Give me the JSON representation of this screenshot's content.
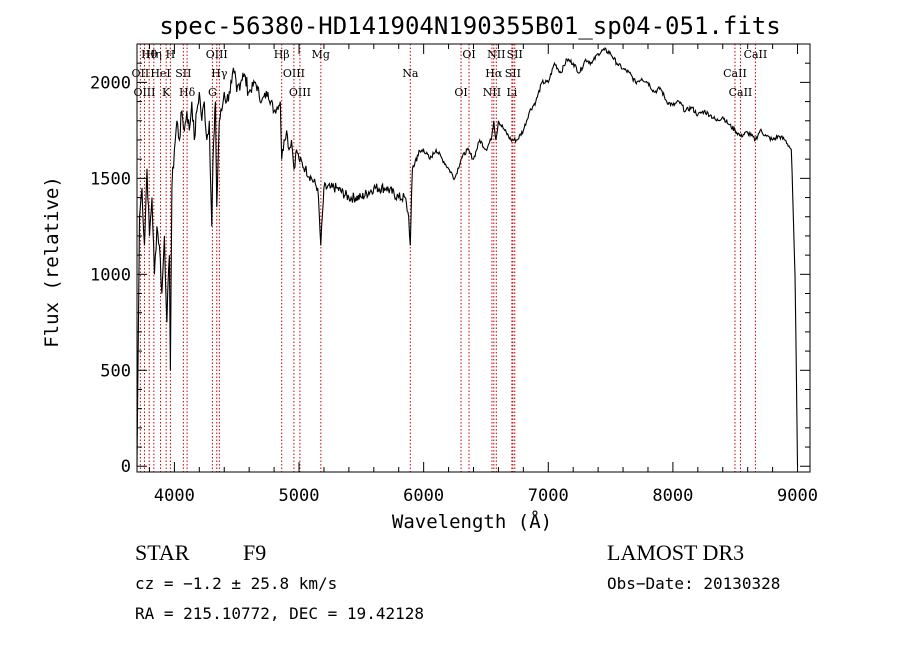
{
  "chart_data": {
    "type": "line",
    "title": "spec-56380-HD141904N190355B01_sp04-051.fits",
    "xlabel": "Wavelength (Å)",
    "ylabel": "Flux (relative)",
    "xlim": [
      3700,
      9100
    ],
    "ylim": [
      -30,
      2200
    ],
    "x_ticks": [
      4000,
      5000,
      6000,
      7000,
      8000,
      9000
    ],
    "y_ticks": [
      0,
      500,
      1000,
      1500,
      2000
    ],
    "x_tick_labels": [
      "4000",
      "5000",
      "6000",
      "7000",
      "8000",
      "9000"
    ],
    "y_tick_labels": [
      "0",
      "500",
      "1000",
      "1500",
      "2000"
    ],
    "grid": false,
    "series": [
      {
        "name": "spectrum",
        "color": "#000000",
        "x": [
          3700,
          3720,
          3740,
          3760,
          3780,
          3800,
          3820,
          3840,
          3860,
          3880,
          3900,
          3920,
          3940,
          3960,
          3968,
          3980,
          4000,
          4020,
          4040,
          4060,
          4080,
          4100,
          4120,
          4140,
          4160,
          4180,
          4200,
          4220,
          4240,
          4260,
          4280,
          4300,
          4310,
          4320,
          4330,
          4340,
          4360,
          4380,
          4400,
          4420,
          4440,
          4460,
          4480,
          4500,
          4550,
          4600,
          4650,
          4700,
          4750,
          4800,
          4850,
          4861,
          4880,
          4900,
          4920,
          4940,
          4960,
          4980,
          5000,
          5050,
          5100,
          5150,
          5175,
          5200,
          5250,
          5300,
          5400,
          5500,
          5600,
          5700,
          5800,
          5850,
          5880,
          5893,
          5910,
          5950,
          6000,
          6050,
          6100,
          6150,
          6200,
          6250,
          6300,
          6350,
          6400,
          6450,
          6500,
          6540,
          6563,
          6580,
          6600,
          6650,
          6700,
          6750,
          6800,
          6850,
          6900,
          6950,
          7000,
          7050,
          7100,
          7150,
          7200,
          7250,
          7300,
          7350,
          7400,
          7450,
          7500,
          7550,
          7600,
          7650,
          7700,
          7750,
          7800,
          7850,
          7900,
          7950,
          8000,
          8050,
          8100,
          8150,
          8200,
          8250,
          8300,
          8350,
          8400,
          8450,
          8500,
          8542,
          8600,
          8662,
          8700,
          8750,
          8800,
          8850,
          8900,
          8950,
          8980,
          9000
        ],
        "y": [
          0,
          1300,
          1450,
          1150,
          1550,
          1200,
          1400,
          1000,
          1250,
          1150,
          900,
          1200,
          750,
          1100,
          500,
          1450,
          1650,
          1800,
          1700,
          1850,
          1750,
          1850,
          1750,
          1900,
          1700,
          1850,
          1950,
          1800,
          1900,
          1700,
          1800,
          1250,
          1600,
          1750,
          1900,
          1350,
          1800,
          1850,
          1950,
          1900,
          1950,
          2000,
          2050,
          1950,
          2050,
          1950,
          2000,
          1900,
          1950,
          1850,
          1900,
          1600,
          1700,
          1750,
          1650,
          1700,
          1550,
          1650,
          1600,
          1550,
          1500,
          1450,
          1150,
          1450,
          1450,
          1450,
          1400,
          1400,
          1450,
          1450,
          1400,
          1400,
          1300,
          1150,
          1550,
          1620,
          1650,
          1600,
          1650,
          1600,
          1550,
          1500,
          1600,
          1650,
          1600,
          1700,
          1650,
          1700,
          1800,
          1700,
          1800,
          1750,
          1700,
          1700,
          1750,
          1850,
          1900,
          2000,
          2000,
          2100,
          2050,
          2120,
          2100,
          2050,
          2120,
          2100,
          2150,
          2170,
          2150,
          2100,
          2070,
          2050,
          2000,
          2020,
          2000,
          1950,
          1970,
          1900,
          1880,
          1900,
          1850,
          1870,
          1830,
          1850,
          1830,
          1800,
          1820,
          1780,
          1750,
          1720,
          1740,
          1700,
          1750,
          1720,
          1700,
          1720,
          1700,
          1650,
          1000,
          0
        ]
      }
    ],
    "line_markers": [
      {
        "label": "Hθ",
        "x": 3798
      },
      {
        "label": "OII",
        "x": 3727
      },
      {
        "label": "OIII",
        "x": 3760
      },
      {
        "label": "Hη",
        "x": 3835
      },
      {
        "label": "HeI",
        "x": 3889
      },
      {
        "label": "K",
        "x": 3934
      },
      {
        "label": "H",
        "x": 3968
      },
      {
        "label": "SII",
        "x": 4072
      },
      {
        "label": "Hδ",
        "x": 4102
      },
      {
        "label": "OIII",
        "x": 4340
      },
      {
        "label": "Hγ",
        "x": 4361
      },
      {
        "label": "G",
        "x": 4305
      },
      {
        "label": "Hβ",
        "x": 4861
      },
      {
        "label": "OIII",
        "x": 4959
      },
      {
        "label": "OIII",
        "x": 5007
      },
      {
        "label": "Mg",
        "x": 5175
      },
      {
        "label": "Na",
        "x": 5893
      },
      {
        "label": "OI",
        "x": 6300
      },
      {
        "label": "OI",
        "x": 6364
      },
      {
        "label": "Hα",
        "x": 6563
      },
      {
        "label": "NII",
        "x": 6548
      },
      {
        "label": "NII",
        "x": 6583
      },
      {
        "label": "SII",
        "x": 6716
      },
      {
        "label": "Li",
        "x": 6708
      },
      {
        "label": "SII",
        "x": 6731
      },
      {
        "label": "CaII",
        "x": 8498
      },
      {
        "label": "CaII",
        "x": 8542
      },
      {
        "label": "CaII",
        "x": 8662
      }
    ],
    "marker_color": "#cc0000"
  },
  "info": {
    "object_class": "STAR",
    "subclass": "F9",
    "survey": "LAMOST DR3",
    "redshift": "cz = −1.2 ± 25.8 km/s",
    "obs_date": "Obs−Date: 20130328",
    "coords": "RA = 215.10772, DEC =  19.42128"
  }
}
